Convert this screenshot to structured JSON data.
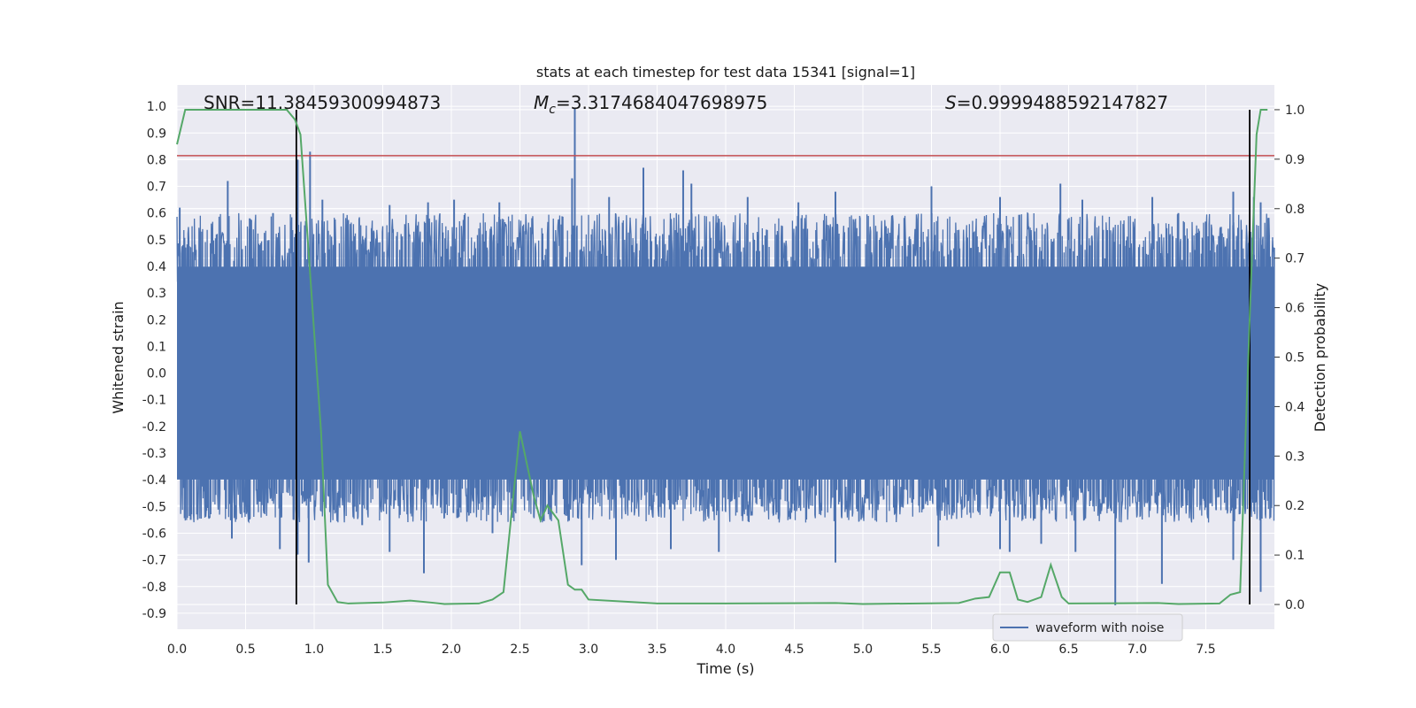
{
  "chart_data": {
    "type": "line",
    "title": "stats at each timestep for test data 15341 [signal=1]",
    "xlabel": "Time (s)",
    "ylabel": "Whitened strain",
    "y2label": "Detection probability",
    "xlim": [
      0.0,
      8.0
    ],
    "ylim": [
      -0.96,
      1.08
    ],
    "y2lim": [
      -0.05,
      1.05
    ],
    "xticks": [
      "0.0",
      "0.5",
      "1.0",
      "1.5",
      "2.0",
      "2.5",
      "3.0",
      "3.5",
      "4.0",
      "4.5",
      "5.0",
      "5.5",
      "6.0",
      "6.5",
      "7.0",
      "7.5"
    ],
    "yticks": [
      "1.0",
      "0.9",
      "0.8",
      "0.7",
      "0.6",
      "0.5",
      "0.4",
      "0.3",
      "0.2",
      "0.1",
      "0.0",
      "-0.1",
      "-0.2",
      "-0.3",
      "-0.4",
      "-0.5",
      "-0.6",
      "-0.7",
      "-0.8",
      "-0.9"
    ],
    "y2ticks": [
      "1.0",
      "0.9",
      "0.8",
      "0.7",
      "0.6",
      "0.5",
      "0.4",
      "0.3",
      "0.2",
      "0.1",
      "0.0"
    ],
    "annotations": {
      "snr": "SNR=11.38459300994873",
      "mc_symbol": "M",
      "mc_sub": "c",
      "mc_value": "=3.3174684047698975",
      "s_symbol": "S",
      "s_value": "=0.9999488592147827"
    },
    "threshold_y": 0.815,
    "vertical_lines_x": [
      0.87,
      7.82
    ],
    "waveform": {
      "name": "waveform with noise",
      "color": "#4c72b0",
      "bulk_amplitude": 0.42,
      "peaks_positive": [
        [
          0.02,
          0.62
        ],
        [
          0.37,
          0.72
        ],
        [
          0.53,
          0.58
        ],
        [
          0.7,
          0.6
        ],
        [
          0.88,
          0.8
        ],
        [
          0.97,
          0.83
        ],
        [
          1.06,
          0.65
        ],
        [
          1.55,
          0.63
        ],
        [
          1.83,
          0.64
        ],
        [
          2.02,
          0.65
        ],
        [
          2.35,
          0.64
        ],
        [
          2.9,
          0.99
        ],
        [
          2.88,
          0.73
        ],
        [
          3.15,
          0.66
        ],
        [
          3.4,
          0.77
        ],
        [
          3.69,
          0.76
        ],
        [
          3.75,
          0.71
        ],
        [
          4.16,
          0.66
        ],
        [
          4.53,
          0.64
        ],
        [
          4.8,
          0.68
        ],
        [
          5.5,
          0.7
        ],
        [
          6.0,
          0.66
        ],
        [
          6.44,
          0.71
        ],
        [
          6.6,
          0.65
        ],
        [
          7.11,
          0.66
        ],
        [
          7.3,
          0.6
        ],
        [
          7.7,
          0.68
        ],
        [
          7.85,
          0.66
        ],
        [
          7.9,
          0.64
        ]
      ],
      "peaks_negative": [
        [
          0.1,
          -0.55
        ],
        [
          0.4,
          -0.62
        ],
        [
          0.75,
          -0.66
        ],
        [
          0.88,
          -0.68
        ],
        [
          0.96,
          -0.71
        ],
        [
          1.35,
          -0.57
        ],
        [
          1.55,
          -0.67
        ],
        [
          1.8,
          -0.75
        ],
        [
          2.3,
          -0.6
        ],
        [
          2.95,
          -0.72
        ],
        [
          3.2,
          -0.7
        ],
        [
          3.6,
          -0.66
        ],
        [
          3.95,
          -0.67
        ],
        [
          4.8,
          -0.71
        ],
        [
          5.55,
          -0.65
        ],
        [
          6.0,
          -0.66
        ],
        [
          6.07,
          -0.67
        ],
        [
          6.3,
          -0.64
        ],
        [
          6.55,
          -0.67
        ],
        [
          6.84,
          -0.87
        ],
        [
          7.18,
          -0.79
        ],
        [
          7.7,
          -0.7
        ],
        [
          7.9,
          -0.82
        ]
      ]
    },
    "probability": {
      "color": "#55a868",
      "points": [
        [
          0.0,
          0.93
        ],
        [
          0.06,
          1.0
        ],
        [
          0.4,
          1.0
        ],
        [
          0.8,
          1.0
        ],
        [
          0.86,
          0.98
        ],
        [
          0.9,
          0.95
        ],
        [
          1.05,
          0.35
        ],
        [
          1.1,
          0.04
        ],
        [
          1.17,
          0.005
        ],
        [
          1.25,
          0.002
        ],
        [
          1.5,
          0.004
        ],
        [
          1.7,
          0.008
        ],
        [
          1.85,
          0.004
        ],
        [
          1.95,
          0.001
        ],
        [
          2.2,
          0.002
        ],
        [
          2.3,
          0.01
        ],
        [
          2.38,
          0.025
        ],
        [
          2.5,
          0.35
        ],
        [
          2.6,
          0.22
        ],
        [
          2.65,
          0.17
        ],
        [
          2.7,
          0.2
        ],
        [
          2.78,
          0.17
        ],
        [
          2.85,
          0.04
        ],
        [
          2.9,
          0.03
        ],
        [
          2.95,
          0.03
        ],
        [
          3.0,
          0.01
        ],
        [
          3.5,
          0.002
        ],
        [
          4.0,
          0.002
        ],
        [
          4.8,
          0.003
        ],
        [
          5.0,
          0.001
        ],
        [
          5.7,
          0.003
        ],
        [
          5.82,
          0.012
        ],
        [
          5.92,
          0.015
        ],
        [
          6.0,
          0.065
        ],
        [
          6.07,
          0.065
        ],
        [
          6.13,
          0.01
        ],
        [
          6.2,
          0.005
        ],
        [
          6.3,
          0.015
        ],
        [
          6.37,
          0.08
        ],
        [
          6.45,
          0.015
        ],
        [
          6.5,
          0.002
        ],
        [
          7.15,
          0.003
        ],
        [
          7.3,
          0.001
        ],
        [
          7.6,
          0.002
        ],
        [
          7.68,
          0.02
        ],
        [
          7.75,
          0.025
        ],
        [
          7.82,
          0.58
        ],
        [
          7.87,
          0.95
        ],
        [
          7.9,
          1.0
        ],
        [
          7.95,
          1.0
        ]
      ]
    },
    "legend": {
      "label": "waveform with noise",
      "placement": "lower-right"
    }
  }
}
